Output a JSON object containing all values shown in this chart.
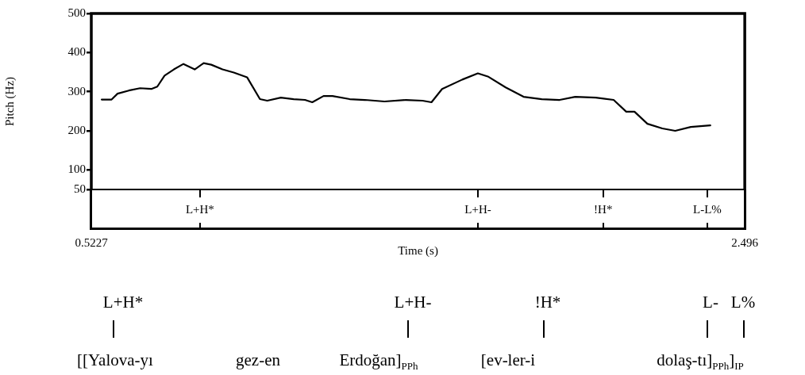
{
  "chart_data": {
    "type": "line",
    "xlabel": "Time (s)",
    "ylabel": "Pitch (Hz)",
    "x": [
      0.554,
      0.584,
      0.602,
      0.636,
      0.67,
      0.704,
      0.722,
      0.744,
      0.772,
      0.801,
      0.835,
      0.862,
      0.885,
      0.919,
      0.953,
      0.993,
      1.032,
      1.054,
      1.095,
      1.134,
      1.168,
      1.19,
      1.224,
      1.251,
      1.303,
      1.349,
      1.408,
      1.473,
      1.523,
      1.55,
      1.582,
      1.643,
      1.69,
      1.72,
      1.774,
      1.828,
      1.883,
      1.937,
      1.984,
      2.046,
      2.1,
      2.138,
      2.163,
      2.202,
      2.247,
      2.286,
      2.333,
      2.392
    ],
    "series": [
      {
        "color": "#000000",
        "values": [
          280,
          280,
          295,
          303,
          309,
          307,
          313,
          341,
          357,
          371,
          357,
          373,
          369,
          357,
          349,
          337,
          281,
          277,
          285,
          281,
          279,
          273,
          289,
          289,
          281,
          279,
          275,
          279,
          277,
          273,
          307,
          331,
          347,
          339,
          311,
          287,
          281,
          279,
          287,
          285,
          279,
          249,
          249,
          218,
          206,
          200,
          210,
          214
        ]
      }
    ],
    "xlim": [
      0.5227,
      2.496
    ],
    "xticks": [
      0.5227,
      2.496
    ],
    "ylim": [
      50,
      500
    ],
    "yticks": [
      50,
      100,
      200,
      300,
      400,
      500
    ],
    "grid": false,
    "legend": false,
    "marker": "none",
    "line_style": "solid",
    "annotations": [
      "L+H*",
      "L+H-",
      "!H*",
      "L-L%",
      "L+H*",
      "L+H-",
      "!H*",
      "L-",
      "L%",
      "[[Yalova-yı",
      "gez-en",
      "Erdoğan]$_{PPh}$",
      "[ev-ler-i",
      "dolaş-tı]$_{PPh}$]$_{IP}$"
    ]
  }
}
